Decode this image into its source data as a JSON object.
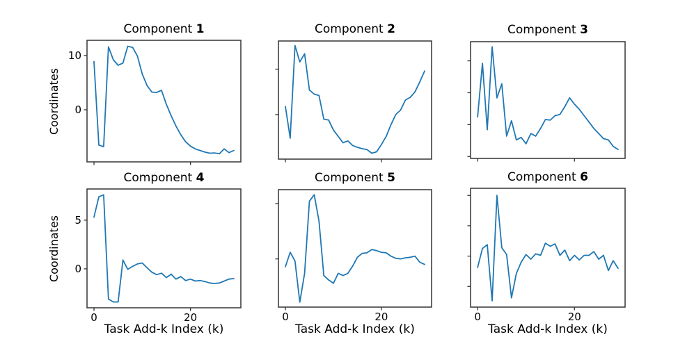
{
  "figure": {
    "background": "#ffffff",
    "title": ""
  },
  "chart_data": {
    "type": "line",
    "grid": false,
    "legend": false,
    "line_color": "#1f77b4",
    "axis_color": "#333333",
    "shared_xlabel": "Task Add-k Index (k)",
    "shared_ylabel": "Coordinates",
    "x": [
      0,
      1,
      2,
      3,
      4,
      5,
      6,
      7,
      8,
      9,
      10,
      11,
      12,
      13,
      14,
      15,
      16,
      17,
      18,
      19,
      20,
      21,
      22,
      23,
      24,
      25,
      26,
      27,
      28,
      29
    ],
    "xlim": [
      -1.45,
      30.45
    ],
    "xticks": [
      0,
      20
    ],
    "subplots": [
      {
        "title_prefix": "Component",
        "title_number": "1",
        "ylim": [
          -9.6,
          12.8
        ],
        "yticks": [
          10,
          0
        ],
        "ytick_labels": [
          "10",
          "0"
        ],
        "xtick_labels": [],
        "values": [
          8.9,
          -6.5,
          -6.8,
          11.6,
          9.2,
          8.2,
          8.6,
          11.7,
          11.5,
          9.9,
          6.6,
          4.45,
          3.25,
          3.2,
          3.6,
          1.0,
          -1.1,
          -3.0,
          -4.6,
          -5.9,
          -6.7,
          -7.2,
          -7.5,
          -7.8,
          -8.0,
          -7.95,
          -8.1,
          -7.2,
          -7.9,
          -7.5
        ]
      },
      {
        "title_prefix": "Component",
        "title_number": "2",
        "ylim": [
          0.1,
          13.1
        ],
        "yticks": [
          10,
          5
        ],
        "ytick_labels": [],
        "xtick_labels": [],
        "values": [
          5.9,
          2.4,
          12.6,
          10.8,
          11.7,
          7.7,
          7.25,
          7.1,
          4.5,
          4.4,
          3.3,
          2.6,
          1.9,
          2.1,
          1.6,
          1.4,
          1.25,
          1.15,
          0.75,
          0.9,
          1.7,
          2.6,
          3.9,
          5.0,
          5.5,
          6.6,
          6.9,
          7.5,
          8.6,
          9.8
        ]
      },
      {
        "title_prefix": "Component",
        "title_number": "3",
        "ylim": [
          -0.15,
          9.0
        ],
        "yticks": [
          7.5,
          5,
          2.5,
          0
        ],
        "ytick_labels": [],
        "xtick_labels": [],
        "values": [
          3.1,
          7.3,
          2.1,
          8.6,
          4.6,
          5.7,
          1.6,
          2.8,
          1.3,
          1.5,
          1.0,
          1.8,
          1.6,
          2.2,
          2.9,
          2.85,
          3.2,
          3.3,
          3.9,
          4.6,
          4.1,
          3.7,
          3.2,
          2.7,
          2.2,
          1.8,
          1.4,
          1.3,
          0.8,
          0.55
        ]
      },
      {
        "title_prefix": "Component",
        "title_number": "4",
        "ylim": [
          -4.0,
          8.2
        ],
        "yticks": [
          5,
          0
        ],
        "ytick_labels": [
          "5",
          "0"
        ],
        "xtick_labels": [
          "0",
          "20"
        ],
        "values": [
          5.3,
          7.4,
          7.6,
          -3.1,
          -3.4,
          -3.4,
          0.9,
          -0.05,
          0.25,
          0.5,
          0.6,
          0.1,
          -0.35,
          -0.6,
          -0.45,
          -0.9,
          -0.55,
          -1.05,
          -0.8,
          -1.2,
          -1.05,
          -1.25,
          -1.2,
          -1.3,
          -1.45,
          -1.5,
          -1.45,
          -1.25,
          -1.05,
          -1.0
        ]
      },
      {
        "title_prefix": "Component",
        "title_number": "5",
        "ylim": [
          -4.35,
          6.25
        ],
        "yticks": [
          5,
          0
        ],
        "ytick_labels": [],
        "xtick_labels": [
          "0",
          "20"
        ],
        "values": [
          -0.7,
          0.6,
          -0.2,
          -3.9,
          -1.3,
          5.2,
          5.8,
          3.4,
          -1.5,
          -1.9,
          -2.2,
          -1.3,
          -1.5,
          -1.3,
          -0.65,
          0.15,
          0.5,
          0.55,
          0.85,
          0.75,
          0.6,
          0.55,
          0.25,
          0.05,
          0.0,
          0.1,
          0.15,
          0.25,
          -0.3,
          -0.5
        ]
      },
      {
        "title_prefix": "Component",
        "title_number": "6",
        "ylim": [
          -3.36,
          4.47
        ],
        "yticks": [
          4,
          2,
          0,
          -2
        ],
        "ytick_labels": [],
        "xtick_labels": [
          "0",
          "20"
        ],
        "values": [
          -0.75,
          0.5,
          0.75,
          -2.95,
          4.0,
          0.55,
          0.1,
          -2.75,
          -1.15,
          -0.4,
          0.1,
          -0.2,
          0.15,
          0.05,
          0.85,
          0.65,
          0.8,
          0.05,
          0.4,
          -0.3,
          0.05,
          -0.25,
          0.05,
          0.05,
          0.3,
          -0.2,
          0.05,
          -0.95,
          -0.3,
          -0.8
        ]
      }
    ]
  }
}
